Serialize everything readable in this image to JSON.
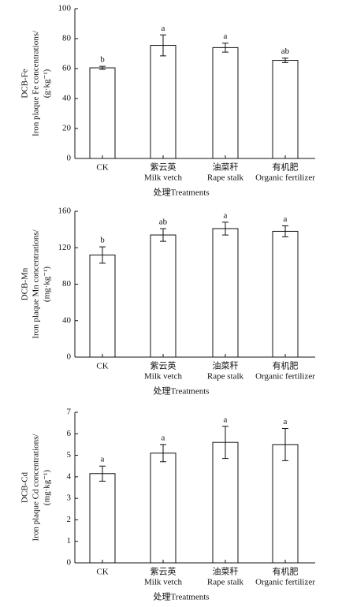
{
  "chart_data": [
    {
      "type": "bar",
      "ylabel": [
        "DCB-Fe",
        "Iron plaque Fe concentrations/",
        "(g·kg⁻¹)"
      ],
      "xlabel": "处理Treatments",
      "categories": [
        [
          "CK"
        ],
        [
          "紫云英",
          "Milk vetch"
        ],
        [
          "油菜秆",
          "Rape stalk"
        ],
        [
          "有机肥",
          "Organic fertilizer"
        ]
      ],
      "values": [
        60.5,
        75.5,
        74,
        65.5
      ],
      "errors": [
        1,
        7,
        3,
        1.5
      ],
      "letters": [
        "b",
        "a",
        "a",
        "ab"
      ],
      "ylim": [
        0,
        100
      ],
      "yticks": [
        0,
        20,
        40,
        60,
        80,
        100
      ],
      "color": "#ffffff"
    },
    {
      "type": "bar",
      "ylabel": [
        "DCB-Mn",
        "Iron plaque Mn concentrations/",
        "(mg·kg⁻¹)"
      ],
      "xlabel": "处理Treatments",
      "categories": [
        [
          "CK"
        ],
        [
          "紫云英",
          "Milk vetch"
        ],
        [
          "油菜秆",
          "Rape stalk"
        ],
        [
          "有机肥",
          "Organic fertilizer"
        ]
      ],
      "values": [
        112,
        134,
        141,
        138
      ],
      "errors": [
        9,
        7,
        7,
        6
      ],
      "letters": [
        "b",
        "ab",
        "a",
        "a"
      ],
      "ylim": [
        0,
        160
      ],
      "yticks": [
        0,
        40,
        80,
        120,
        160
      ],
      "color": "#ffffff"
    },
    {
      "type": "bar",
      "ylabel": [
        "DCB-Cd",
        "Iron plaque Cd concentrations/",
        "(mg·kg⁻¹)"
      ],
      "xlabel": "处理Treatments",
      "categories": [
        [
          "CK"
        ],
        [
          "紫云英",
          "Milk vetch"
        ],
        [
          "油菜秆",
          "Rape stalk"
        ],
        [
          "有机肥",
          "Organic fertilizer"
        ]
      ],
      "values": [
        4.15,
        5.1,
        5.6,
        5.5
      ],
      "errors": [
        0.35,
        0.4,
        0.75,
        0.75
      ],
      "letters": [
        "a",
        "a",
        "a",
        "a"
      ],
      "ylim": [
        0,
        7
      ],
      "yticks": [
        0,
        1,
        2,
        3,
        4,
        5,
        6,
        7
      ],
      "color": "#ffffff"
    }
  ]
}
